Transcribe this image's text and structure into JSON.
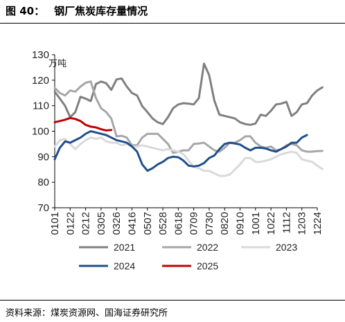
{
  "header": {
    "figure_no": "图 40：",
    "title": "钢厂焦炭库存量情况"
  },
  "footer": {
    "source": "资料来源：煤炭资源网、国海证券研究所"
  },
  "chart_data": {
    "type": "line",
    "unit": "万吨",
    "ylim": [
      70,
      130
    ],
    "yticks": [
      70,
      80,
      90,
      100,
      110,
      120,
      130
    ],
    "xlim": [
      0,
      51
    ],
    "xtick_positions": [
      0,
      3,
      6,
      9,
      12,
      15,
      18,
      21,
      24,
      27,
      30,
      33,
      36,
      39,
      42,
      45,
      48,
      51
    ],
    "xticks": [
      "0101",
      "0122",
      "0212",
      "0305",
      "0326",
      "0416",
      "0507",
      "0528",
      "0618",
      "0709",
      "0730",
      "0820",
      "0910",
      "1001",
      "1022",
      "1112",
      "1203",
      "1224"
    ],
    "grid": false,
    "legend": "bottom",
    "series": [
      {
        "name": "2021",
        "color": "#7f7f7f",
        "values": [
          115.5,
          112.8,
          110.0,
          105.5,
          107.5,
          113.5,
          112.8,
          111.8,
          118.5,
          119.5,
          118.8,
          116.2,
          120.3,
          120.7,
          117.5,
          115.0,
          114.0,
          109.8,
          107.5,
          105.0,
          103.5,
          102.8,
          105.5,
          109.0,
          110.5,
          111.0,
          110.8,
          110.5,
          113.0,
          126.5,
          122.0,
          112.0,
          106.5,
          106.0,
          105.5,
          105.0,
          103.5,
          102.8,
          102.5,
          103.0,
          106.5,
          106.0,
          108.0,
          110.5,
          110.8,
          111.5,
          106.0,
          107.5,
          110.5,
          111.0,
          114.0,
          116.0,
          117.2
        ]
      },
      {
        "name": "2022",
        "color": "#a6a6a6",
        "values": [
          117.0,
          115.0,
          114.0,
          116.0,
          115.5,
          117.5,
          119.0,
          119.5,
          113.0,
          109.0,
          107.5,
          105.0,
          98.0,
          98.2,
          97.5,
          94.5,
          94.5,
          97.5,
          99.0,
          99.0,
          99.0,
          97.0,
          95.0,
          91.5,
          92.0,
          92.5,
          92.5,
          95.0,
          95.2,
          95.5,
          94.0,
          92.5,
          92.0,
          93.5,
          95.5,
          95.5,
          96.5,
          98.0,
          98.0,
          95.5,
          94.0,
          93.5,
          94.0,
          92.5,
          93.0,
          94.5,
          95.0,
          94.5,
          92.5,
          92.0,
          92.0,
          92.2,
          92.3
        ]
      },
      {
        "name": "2023",
        "color": "#d9d9d9",
        "values": [
          94.0,
          96.5,
          97.0,
          95.0,
          93.0,
          95.0,
          96.5,
          97.5,
          97.0,
          97.5,
          96.0,
          95.5,
          95.5,
          94.5,
          95.0,
          94.0,
          94.0,
          94.5,
          94.0,
          93.5,
          93.0,
          92.5,
          93.0,
          92.5,
          92.0,
          91.0,
          88.5,
          86.0,
          85.5,
          84.5,
          84.5,
          83.5,
          82.5,
          82.5,
          83.0,
          85.0,
          87.0,
          89.5,
          89.5,
          88.0,
          88.0,
          88.5,
          89.0,
          90.0,
          91.0,
          91.5,
          92.0,
          91.5,
          89.0,
          88.5,
          88.0,
          86.5,
          85.2
        ]
      },
      {
        "name": "2024",
        "color": "#1f4e8c",
        "values": [
          89.0,
          93.5,
          96.0,
          95.5,
          96.5,
          97.5,
          99.0,
          100.0,
          99.5,
          99.0,
          98.5,
          97.5,
          96.5,
          96.0,
          95.5,
          94.0,
          92.0,
          87.0,
          84.5,
          85.5,
          87.0,
          88.0,
          89.5,
          90.0,
          89.8,
          88.5,
          86.5,
          86.2,
          86.5,
          87.5,
          89.5,
          90.5,
          93.0,
          95.0,
          95.5,
          95.2,
          94.8,
          93.5,
          92.5,
          93.5,
          93.5,
          93.2,
          92.5,
          92.0,
          93.0,
          94.0,
          95.5,
          95.5,
          97.5,
          98.5
        ]
      },
      {
        "name": "2025",
        "color": "#c00000",
        "values": [
          103.5,
          104.0,
          104.5,
          105.2,
          104.8,
          104.0,
          102.5,
          101.8,
          101.5,
          100.8,
          100.3,
          100.5
        ]
      }
    ]
  }
}
